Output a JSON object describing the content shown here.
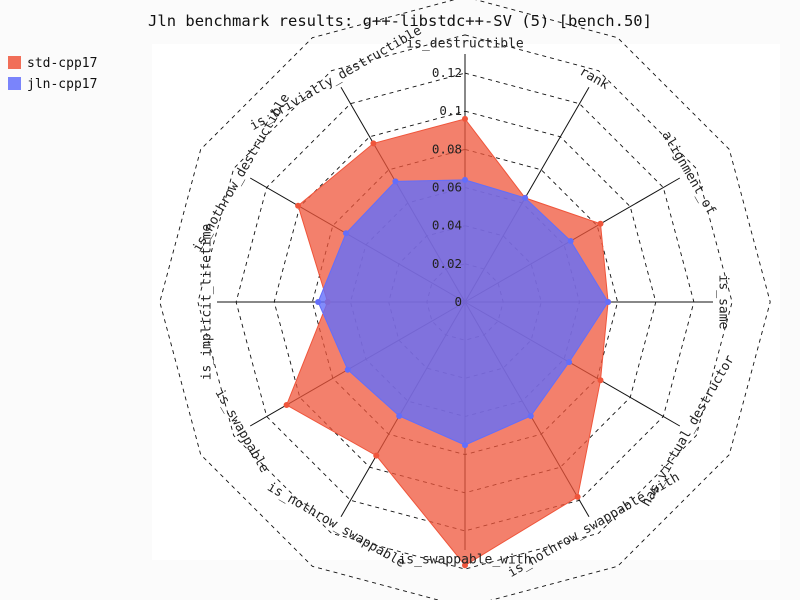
{
  "chart_data": {
    "type": "radar",
    "title": "Jln benchmark results: g++-libstdc++-SV (5) [bench.50]",
    "categories": [
      "is_destructible",
      "rank",
      "alignment_of",
      "is_same",
      "has_virtual_destructor",
      "is_nothrow_swappable_with",
      "is_swappable_with",
      "is_nothrow_swappable",
      "is_swappable",
      "is_implicit_lifetime",
      "is_nothrow_destructible",
      "is_trivially_destructible"
    ],
    "radial_ticks": [
      "0",
      "0.02",
      "0.04",
      "0.06",
      "0.08",
      "0.1",
      "0.12"
    ],
    "radial_range": [
      0,
      0.13
    ],
    "legend_position": "top-left",
    "series": [
      {
        "name": "std-cpp17",
        "color": "#ef553b",
        "values": [
          0.096,
          0.063,
          0.082,
          0.075,
          0.082,
          0.118,
          0.138,
          0.093,
          0.108,
          0.072,
          0.101,
          0.096
        ]
      },
      {
        "name": "jln-cpp17",
        "color": "#636efa",
        "values": [
          0.064,
          0.063,
          0.064,
          0.075,
          0.063,
          0.069,
          0.075,
          0.069,
          0.071,
          0.077,
          0.072,
          0.073
        ]
      }
    ]
  }
}
